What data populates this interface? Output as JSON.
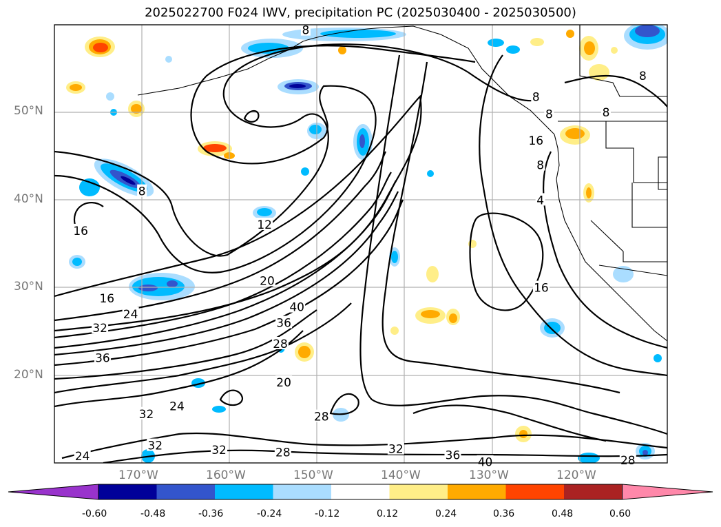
{
  "title": "2025022700 F024 IWV, precipitation PC (2025030400 - 2025030500)",
  "map": {
    "lon_range": [
      -180,
      -110
    ],
    "lat_range": [
      10,
      60
    ],
    "lat_ticks": [
      "50°N",
      "40°N",
      "30°N",
      "20°N"
    ],
    "lon_ticks": [
      "170°W",
      "160°W",
      "150°W",
      "140°W",
      "130°W",
      "120°W"
    ],
    "gridlines": true
  },
  "contour_labels": [
    {
      "text": "16",
      "lon": -177.0,
      "lat": 36.5
    },
    {
      "text": "8",
      "lon": -170.0,
      "lat": 41.0
    },
    {
      "text": "12",
      "lon": -156.0,
      "lat": 37.2
    },
    {
      "text": "16",
      "lon": -174.0,
      "lat": 28.8
    },
    {
      "text": "20",
      "lon": -155.7,
      "lat": 30.8
    },
    {
      "text": "24",
      "lon": -171.3,
      "lat": 27.0
    },
    {
      "text": "40",
      "lon": -152.3,
      "lat": 27.8
    },
    {
      "text": "36",
      "lon": -153.8,
      "lat": 26.0
    },
    {
      "text": "32",
      "lon": -174.8,
      "lat": 25.4
    },
    {
      "text": "36",
      "lon": -174.5,
      "lat": 22.0
    },
    {
      "text": "28",
      "lon": -154.2,
      "lat": 23.6
    },
    {
      "text": "20",
      "lon": -153.8,
      "lat": 19.2
    },
    {
      "text": "32",
      "lon": -169.5,
      "lat": 15.6
    },
    {
      "text": "24",
      "lon": -166.0,
      "lat": 16.5
    },
    {
      "text": "28",
      "lon": -149.5,
      "lat": 15.3
    },
    {
      "text": "32",
      "lon": -168.5,
      "lat": 12.0
    },
    {
      "text": "24",
      "lon": -176.8,
      "lat": 10.8
    },
    {
      "text": "32",
      "lon": -161.2,
      "lat": 11.5
    },
    {
      "text": "28",
      "lon": -153.9,
      "lat": 11.2
    },
    {
      "text": "32",
      "lon": -141.0,
      "lat": 11.6
    },
    {
      "text": "36",
      "lon": -134.5,
      "lat": 10.9
    },
    {
      "text": "40",
      "lon": -130.8,
      "lat": 10.1
    },
    {
      "text": "28",
      "lon": -114.5,
      "lat": 10.3
    },
    {
      "text": "16",
      "lon": -124.4,
      "lat": 30.0
    },
    {
      "text": "4",
      "lon": -124.5,
      "lat": 40.0
    },
    {
      "text": "8",
      "lon": -124.5,
      "lat": 44.0
    },
    {
      "text": "16",
      "lon": -125.0,
      "lat": 46.8
    },
    {
      "text": "8",
      "lon": -125.0,
      "lat": 51.8
    },
    {
      "text": "8",
      "lon": -123.5,
      "lat": 49.8
    },
    {
      "text": "8",
      "lon": -117.0,
      "lat": 50.0
    },
    {
      "text": "8",
      "lon": -112.8,
      "lat": 54.2
    },
    {
      "text": "8",
      "lon": -151.3,
      "lat": 59.4
    }
  ],
  "colorbar": {
    "ticks": [
      "-0.60",
      "-0.48",
      "-0.36",
      "-0.24",
      "-0.12",
      "0.12",
      "0.24",
      "0.36",
      "0.48",
      "0.60"
    ],
    "colors": [
      "#9933cc",
      "#000099",
      "#3355cc",
      "#00bbff",
      "#aaddff",
      "#ffffff",
      "#ffee88",
      "#ffaa00",
      "#ff4400",
      "#aa2222",
      "#ff88aa"
    ],
    "extend": "both"
  }
}
